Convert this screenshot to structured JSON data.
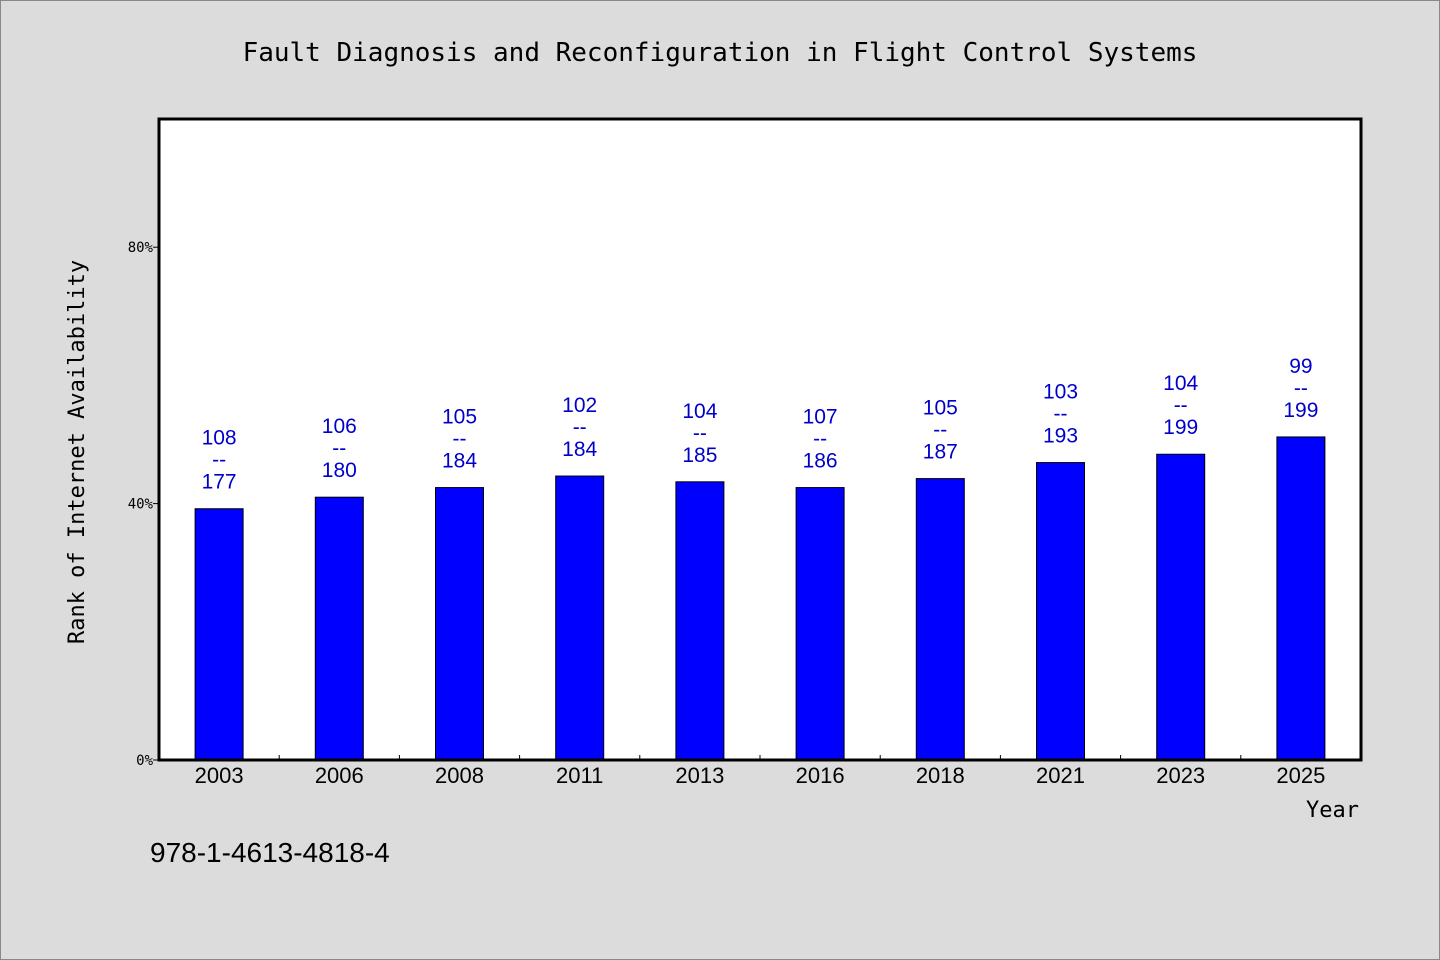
{
  "chart_data": {
    "type": "bar",
    "title": "Fault Diagnosis and Reconfiguration in Flight Control Systems",
    "xlabel": "Year",
    "ylabel": "Rank of Internet Availability",
    "ylim": [
      0,
      100
    ],
    "yticks": [
      {
        "value": 0,
        "label": "0%"
      },
      {
        "value": 40,
        "label": "40%"
      },
      {
        "value": 80,
        "label": "80%"
      }
    ],
    "categories": [
      "2003",
      "2006",
      "2008",
      "2011",
      "2013",
      "2016",
      "2018",
      "2021",
      "2023",
      "2025"
    ],
    "values": [
      39.2,
      41.0,
      42.5,
      44.3,
      43.4,
      42.5,
      43.9,
      46.4,
      47.7,
      50.4
    ],
    "rank": [
      108,
      106,
      105,
      102,
      104,
      107,
      105,
      103,
      104,
      99
    ],
    "total": [
      177,
      180,
      184,
      184,
      185,
      186,
      187,
      193,
      199,
      199
    ],
    "separator": "--",
    "bar_color": "#0000ff",
    "label_color": "#0000cc",
    "legend": "none",
    "grid": false
  },
  "footer": {
    "isbn": "978-1-4613-4818-4"
  }
}
